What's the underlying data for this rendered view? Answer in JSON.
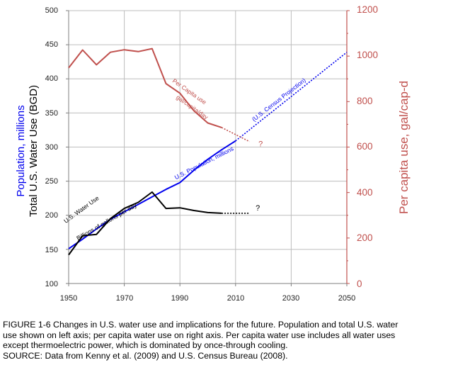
{
  "chart_data": {
    "type": "line",
    "x_range": [
      1950,
      2050
    ],
    "x_ticks": [
      "1950",
      "1970",
      "1990",
      "2010",
      "2030",
      "2050"
    ],
    "left_axis": {
      "label_line1": "Population, millions",
      "label_line2": "Total U.S. Water Use (BGD)",
      "range": [
        100,
        500
      ],
      "ticks": [
        "100",
        "150",
        "200",
        "250",
        "300",
        "350",
        "400",
        "450",
        "500"
      ]
    },
    "right_axis": {
      "label": "Per capita use, gal/cap-d",
      "range": [
        0,
        1200
      ],
      "ticks": [
        "0",
        "200",
        "400",
        "600",
        "800",
        "1000",
        "1200"
      ]
    },
    "series": [
      {
        "name": "U.S. Population, millions",
        "axis": "left",
        "color": "#0000ee",
        "x": [
          1950,
          1955,
          1960,
          1965,
          1970,
          1975,
          1980,
          1985,
          1990,
          1995,
          2000,
          2005,
          2010
        ],
        "y": [
          151,
          165,
          180,
          194,
          205,
          216,
          227,
          238,
          248,
          266,
          282,
          296,
          309
        ]
      },
      {
        "name": "U.S. Census Projection",
        "axis": "left",
        "color": "#0000ee",
        "dashed": true,
        "x": [
          2010,
          2050
        ],
        "y": [
          309,
          439
        ]
      },
      {
        "name": "U.S. Water Use",
        "axis": "left",
        "color": "#000000",
        "x": [
          1950,
          1955,
          1960,
          1965,
          1970,
          1975,
          1980,
          1985,
          1990,
          1995,
          2000,
          2005
        ],
        "y": [
          142,
          170,
          172,
          195,
          210,
          219,
          234,
          210,
          211,
          207,
          204,
          203
        ]
      },
      {
        "name": "U.S. Water Use extension",
        "axis": "left",
        "color": "#000000",
        "dashed": true,
        "x": [
          2005,
          2015
        ],
        "y": [
          203,
          203
        ]
      },
      {
        "name": "Per Capita use",
        "axis": "right",
        "color": "#c0504d",
        "x": [
          1950,
          1955,
          1960,
          1965,
          1970,
          1975,
          1980,
          1985,
          1990,
          1995,
          2000,
          2005
        ],
        "y": [
          948,
          1027,
          962,
          1017,
          1028,
          1020,
          1033,
          879,
          837,
          760,
          706,
          686
        ]
      },
      {
        "name": "Per Capita use extension",
        "axis": "right",
        "color": "#c0504d",
        "dashed": true,
        "x": [
          2005,
          2015
        ],
        "y": [
          686,
          624
        ]
      }
    ],
    "annotations": [
      {
        "text": "Per Capita use",
        "x": 1993,
        "y_left": 379,
        "color": "#c0504d",
        "angle": 35
      },
      {
        "text": "gal/capita/day",
        "x": 1994,
        "y_left": 356,
        "color": "#c0504d",
        "angle": 35
      },
      {
        "text": "(U.S. Census Projection)",
        "x": 2026,
        "y_left": 367,
        "color": "#0000ee",
        "angle": -38
      },
      {
        "text": "U.S. Population, millions",
        "x": 1999,
        "y_left": 274,
        "color": "#0000ee",
        "angle": -27
      },
      {
        "text": "U.S. Water Use",
        "x": 1955,
        "y_left": 206,
        "color": "#000000",
        "angle": -36
      },
      {
        "text": "Billions of gallons per day",
        "x": 1964,
        "y_left": 188,
        "color": "#000000",
        "angle": -30
      },
      {
        "text": "?",
        "x": 2019,
        "y_left": 301,
        "color": "#c0504d",
        "angle": 0
      },
      {
        "text": "?",
        "x": 2018,
        "y_left": 207,
        "color": "#000000",
        "angle": 0
      }
    ]
  },
  "caption": {
    "line1": "FIGURE 1-6 Changes in U.S. water use and implications for the future. Population and total U.S. water",
    "line2": "use shown on left axis; per capita water use on right axis. Per capita water use includes all water uses",
    "line3": "except thermoelectric power, which is dominated by once-through cooling.",
    "line4": "SOURCE: Data from Kenny et al. (2009) and U.S. Census Bureau (2008)."
  }
}
